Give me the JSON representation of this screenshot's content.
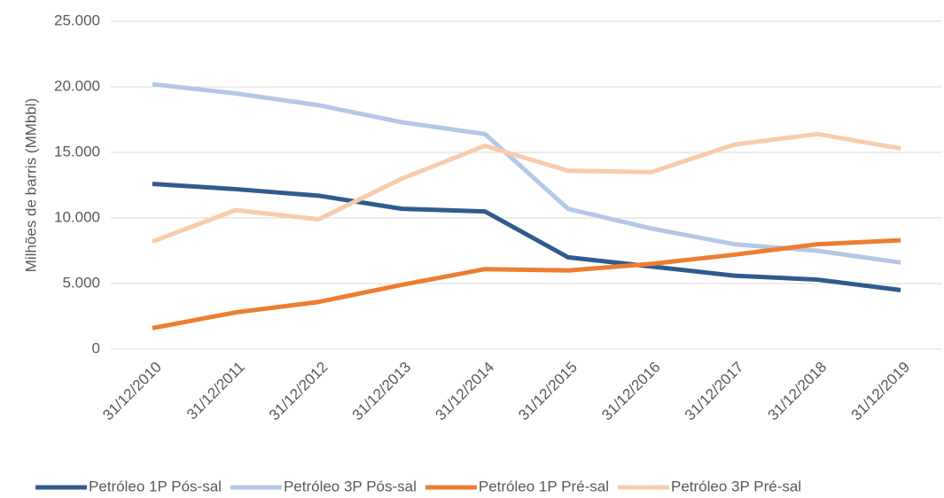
{
  "chart_data": {
    "type": "line",
    "y_label": "Milhões de barris (MMbbl)",
    "categories": [
      "31/12/2010",
      "31/12/2011",
      "31/12/2012",
      "31/12/2013",
      "31/12/2014",
      "31/12/2015",
      "31/12/2016",
      "31/12/2017",
      "31/12/2018",
      "31/12/2019"
    ],
    "series": [
      {
        "name": "Petróleo 1P Pós-sal",
        "color": "#2f5b8f",
        "values": [
          12600,
          12200,
          11700,
          10700,
          10500,
          7000,
          6300,
          5600,
          5300,
          4500
        ]
      },
      {
        "name": "Petróleo 3P Pós-sal",
        "color": "#b4c7e7",
        "values": [
          20200,
          19500,
          18600,
          17300,
          16400,
          10700,
          9200,
          8000,
          7500,
          6600
        ]
      },
      {
        "name": "Petróleo 1P Pré-sal",
        "color": "#ed7d31",
        "values": [
          1600,
          2800,
          3600,
          4900,
          6100,
          6000,
          6500,
          7200,
          8000,
          8300
        ]
      },
      {
        "name": "Petróleo 3P Pré-sal",
        "color": "#f8cbad",
        "values": [
          8200,
          10600,
          9900,
          13000,
          15500,
          13600,
          13500,
          15600,
          16400,
          15300
        ]
      }
    ],
    "ylim": [
      0,
      25000
    ],
    "yticks": [
      0,
      {
        "value": 5000,
        "label": "5.000"
      },
      {
        "value": 10000,
        "label": "10.000"
      },
      {
        "value": 15000,
        "label": "15.000"
      },
      {
        "value": 20000,
        "label": "20.000"
      },
      {
        "value": 25000,
        "label": "25.000"
      }
    ],
    "grid": true
  }
}
